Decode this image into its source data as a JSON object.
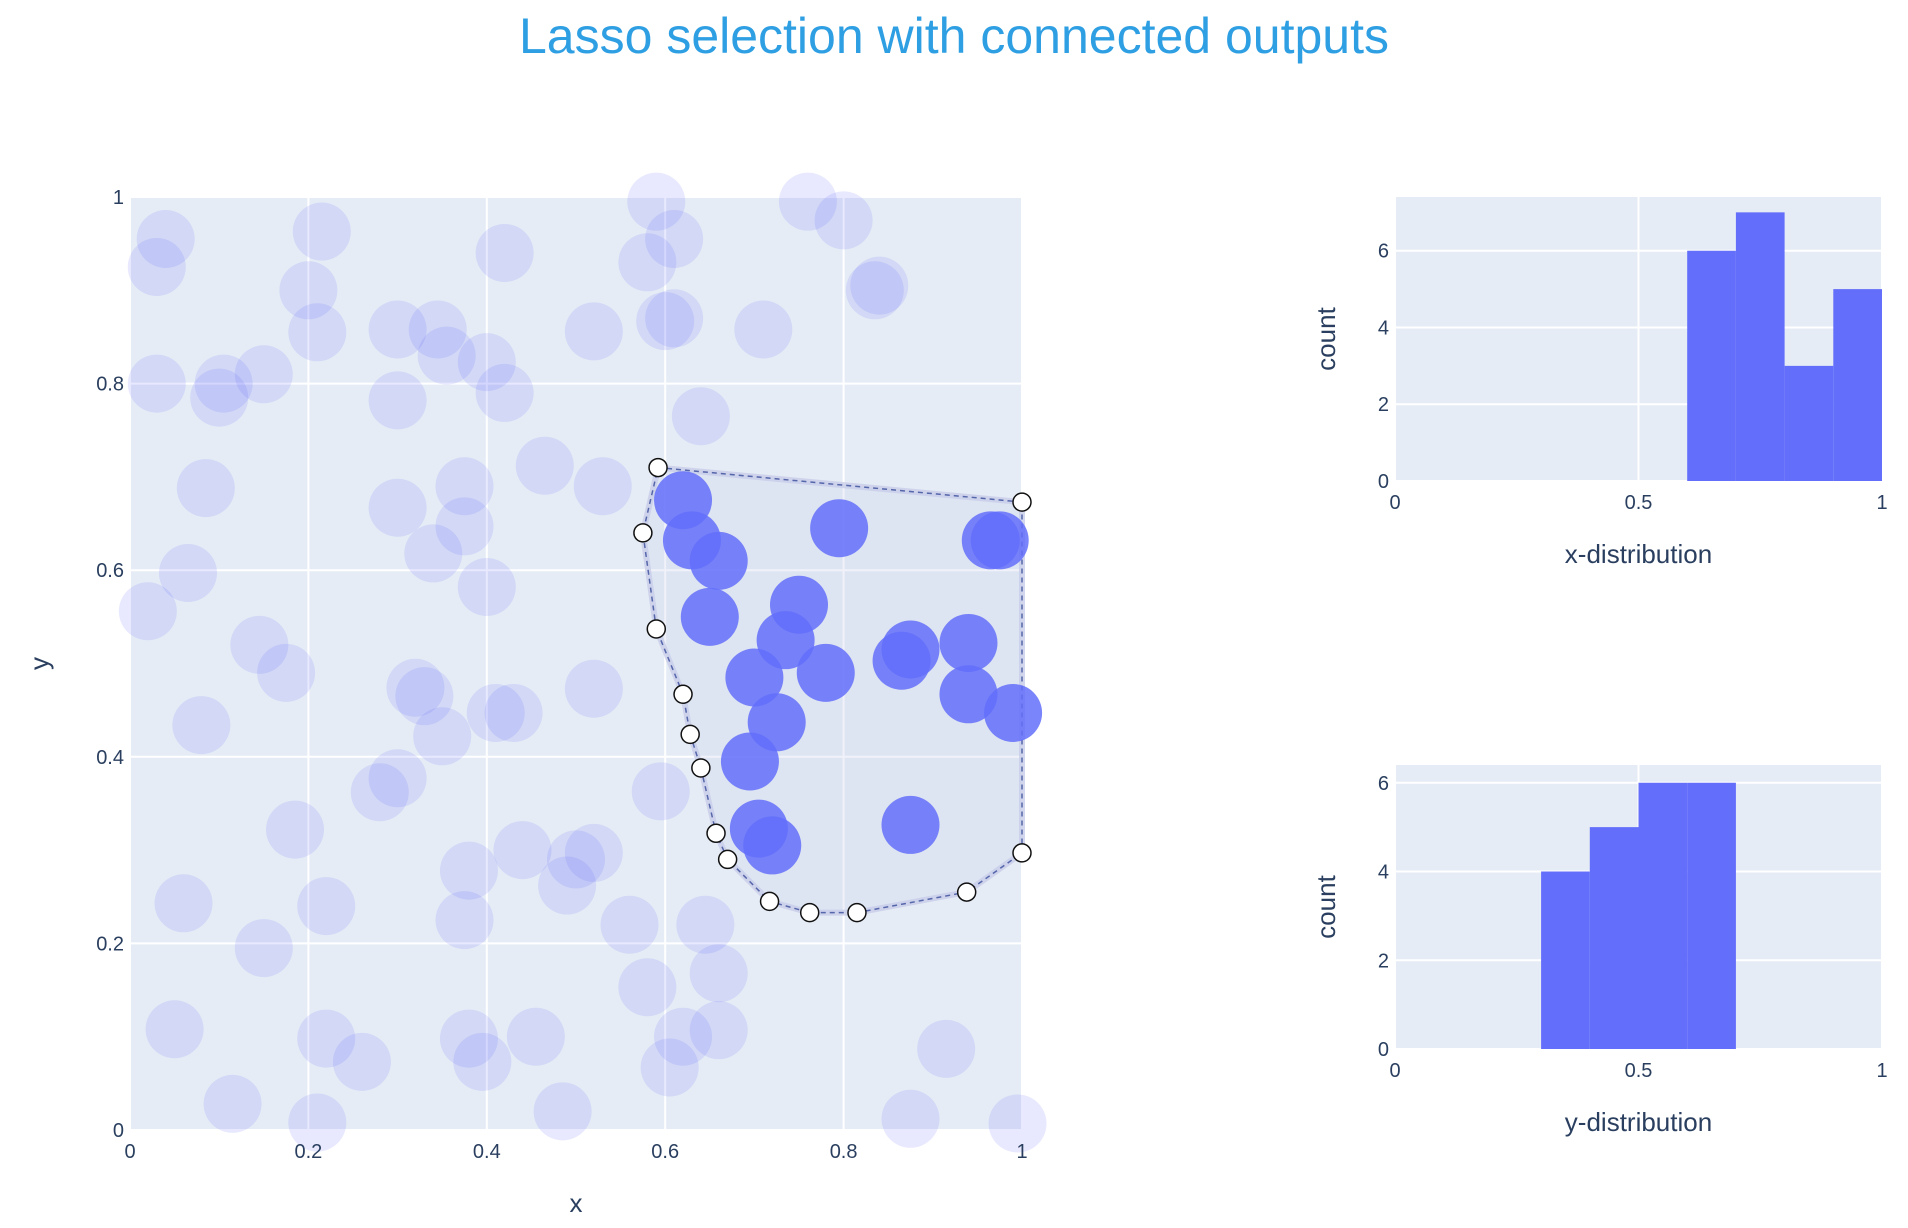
{
  "title": "Lasso selection with connected outputs",
  "colors": {
    "title": "#2f9fe3",
    "plot_bg": "#e5ecf6",
    "grid": "#ffffff",
    "marker": "#636efa",
    "unselected_opacity": 0.15,
    "selected_opacity": 0.85,
    "lasso_fill": "#c8cde8",
    "lasso_line": "#5566aa",
    "text": "#2a3f5f"
  },
  "chart_data": [
    {
      "type": "scatter",
      "name": "scatter",
      "xlabel": "x",
      "ylabel": "y",
      "xlim": [
        0,
        1
      ],
      "ylim": [
        0,
        1
      ],
      "xticks": [
        "0",
        "0.2",
        "0.4",
        "0.6",
        "0.8",
        "1"
      ],
      "yticks": [
        "0",
        "0.2",
        "0.4",
        "0.6",
        "0.8",
        "1"
      ],
      "grid": true,
      "unselected": [
        [
          0.04,
          0.955
        ],
        [
          0.03,
          0.925
        ],
        [
          0.215,
          0.963
        ],
        [
          0.2,
          0.9
        ],
        [
          0.21,
          0.855
        ],
        [
          0.03,
          0.8
        ],
        [
          0.105,
          0.8
        ],
        [
          0.1,
          0.785
        ],
        [
          0.15,
          0.81
        ],
        [
          0.3,
          0.858
        ],
        [
          0.345,
          0.858
        ],
        [
          0.355,
          0.83
        ],
        [
          0.4,
          0.823
        ],
        [
          0.42,
          0.79
        ],
        [
          0.3,
          0.782
        ],
        [
          0.42,
          0.94
        ],
        [
          0.52,
          0.856
        ],
        [
          0.59,
          0.995
        ],
        [
          0.58,
          0.93
        ],
        [
          0.61,
          0.955
        ],
        [
          0.61,
          0.87
        ],
        [
          0.6,
          0.867
        ],
        [
          0.71,
          0.858
        ],
        [
          0.76,
          0.995
        ],
        [
          0.8,
          0.975
        ],
        [
          0.84,
          0.905
        ],
        [
          0.835,
          0.9
        ],
        [
          0.64,
          0.765
        ],
        [
          0.085,
          0.688
        ],
        [
          0.465,
          0.712
        ],
        [
          0.53,
          0.69
        ],
        [
          0.375,
          0.69
        ],
        [
          0.3,
          0.667
        ],
        [
          0.375,
          0.647
        ],
        [
          0.34,
          0.618
        ],
        [
          0.065,
          0.597
        ],
        [
          0.4,
          0.582
        ],
        [
          0.02,
          0.556
        ],
        [
          0.145,
          0.52
        ],
        [
          0.175,
          0.49
        ],
        [
          0.32,
          0.474
        ],
        [
          0.33,
          0.465
        ],
        [
          0.52,
          0.473
        ],
        [
          0.08,
          0.434
        ],
        [
          0.35,
          0.422
        ],
        [
          0.43,
          0.447
        ],
        [
          0.41,
          0.447
        ],
        [
          0.3,
          0.377
        ],
        [
          0.28,
          0.362
        ],
        [
          0.595,
          0.363
        ],
        [
          0.185,
          0.322
        ],
        [
          0.06,
          0.243
        ],
        [
          0.22,
          0.24
        ],
        [
          0.38,
          0.278
        ],
        [
          0.44,
          0.3
        ],
        [
          0.5,
          0.29
        ],
        [
          0.52,
          0.297
        ],
        [
          0.49,
          0.262
        ],
        [
          0.375,
          0.225
        ],
        [
          0.56,
          0.22
        ],
        [
          0.645,
          0.22
        ],
        [
          0.15,
          0.195
        ],
        [
          0.58,
          0.153
        ],
        [
          0.66,
          0.168
        ],
        [
          0.05,
          0.108
        ],
        [
          0.22,
          0.098
        ],
        [
          0.26,
          0.073
        ],
        [
          0.38,
          0.098
        ],
        [
          0.395,
          0.073
        ],
        [
          0.455,
          0.1
        ],
        [
          0.62,
          0.1
        ],
        [
          0.605,
          0.067
        ],
        [
          0.66,
          0.107
        ],
        [
          0.915,
          0.087
        ],
        [
          0.115,
          0.028
        ],
        [
          0.21,
          0.008
        ],
        [
          0.485,
          0.02
        ],
        [
          0.875,
          0.012
        ],
        [
          0.995,
          0.007
        ]
      ],
      "selected": [
        [
          0.62,
          0.675
        ],
        [
          0.63,
          0.632
        ],
        [
          0.66,
          0.61
        ],
        [
          0.795,
          0.645
        ],
        [
          0.965,
          0.632
        ],
        [
          0.975,
          0.632
        ],
        [
          0.65,
          0.55
        ],
        [
          0.75,
          0.563
        ],
        [
          0.735,
          0.525
        ],
        [
          0.7,
          0.485
        ],
        [
          0.78,
          0.49
        ],
        [
          0.875,
          0.515
        ],
        [
          0.865,
          0.503
        ],
        [
          0.94,
          0.522
        ],
        [
          0.94,
          0.467
        ],
        [
          0.99,
          0.447
        ],
        [
          0.725,
          0.437
        ],
        [
          0.695,
          0.395
        ],
        [
          0.705,
          0.323
        ],
        [
          0.72,
          0.305
        ],
        [
          0.875,
          0.327
        ]
      ],
      "lasso": [
        [
          0.592,
          0.71
        ],
        [
          1.0,
          0.673
        ],
        [
          1.0,
          0.297
        ],
        [
          0.938,
          0.255
        ],
        [
          0.815,
          0.233
        ],
        [
          0.762,
          0.233
        ],
        [
          0.717,
          0.245
        ],
        [
          0.67,
          0.29
        ],
        [
          0.657,
          0.318
        ],
        [
          0.64,
          0.388
        ],
        [
          0.628,
          0.424
        ],
        [
          0.62,
          0.467
        ],
        [
          0.59,
          0.537
        ],
        [
          0.575,
          0.64
        ],
        [
          0.592,
          0.71
        ]
      ],
      "lasso_vertices": [
        [
          0.592,
          0.71
        ],
        [
          0.575,
          0.64
        ],
        [
          0.59,
          0.537
        ],
        [
          0.62,
          0.467
        ],
        [
          0.628,
          0.424
        ],
        [
          0.64,
          0.388
        ],
        [
          0.657,
          0.318
        ],
        [
          0.67,
          0.29
        ],
        [
          0.717,
          0.245
        ],
        [
          0.762,
          0.233
        ],
        [
          0.815,
          0.233
        ],
        [
          0.938,
          0.255
        ],
        [
          1.0,
          0.297
        ],
        [
          1.0,
          0.673
        ]
      ]
    },
    {
      "type": "bar",
      "name": "x-histogram",
      "xlabel": "x-distribution",
      "ylabel": "count",
      "xlim": [
        0,
        1
      ],
      "ylim": [
        0,
        7.4
      ],
      "xticks": [
        "0",
        "0.5",
        "1"
      ],
      "yticks": [
        "0",
        "2",
        "4",
        "6"
      ],
      "bins": [
        [
          0.6,
          0.7,
          6
        ],
        [
          0.7,
          0.8,
          7
        ],
        [
          0.8,
          0.9,
          3
        ],
        [
          0.9,
          1.0,
          5
        ]
      ]
    },
    {
      "type": "bar",
      "name": "y-histogram",
      "xlabel": "y-distribution",
      "ylabel": "count",
      "xlim": [
        0,
        1
      ],
      "ylim": [
        0,
        6.4
      ],
      "xticks": [
        "0",
        "0.5",
        "1"
      ],
      "yticks": [
        "0",
        "2",
        "4",
        "6"
      ],
      "bins": [
        [
          0.3,
          0.4,
          4
        ],
        [
          0.4,
          0.5,
          5
        ],
        [
          0.5,
          0.6,
          6
        ],
        [
          0.6,
          0.7,
          6
        ]
      ]
    }
  ]
}
